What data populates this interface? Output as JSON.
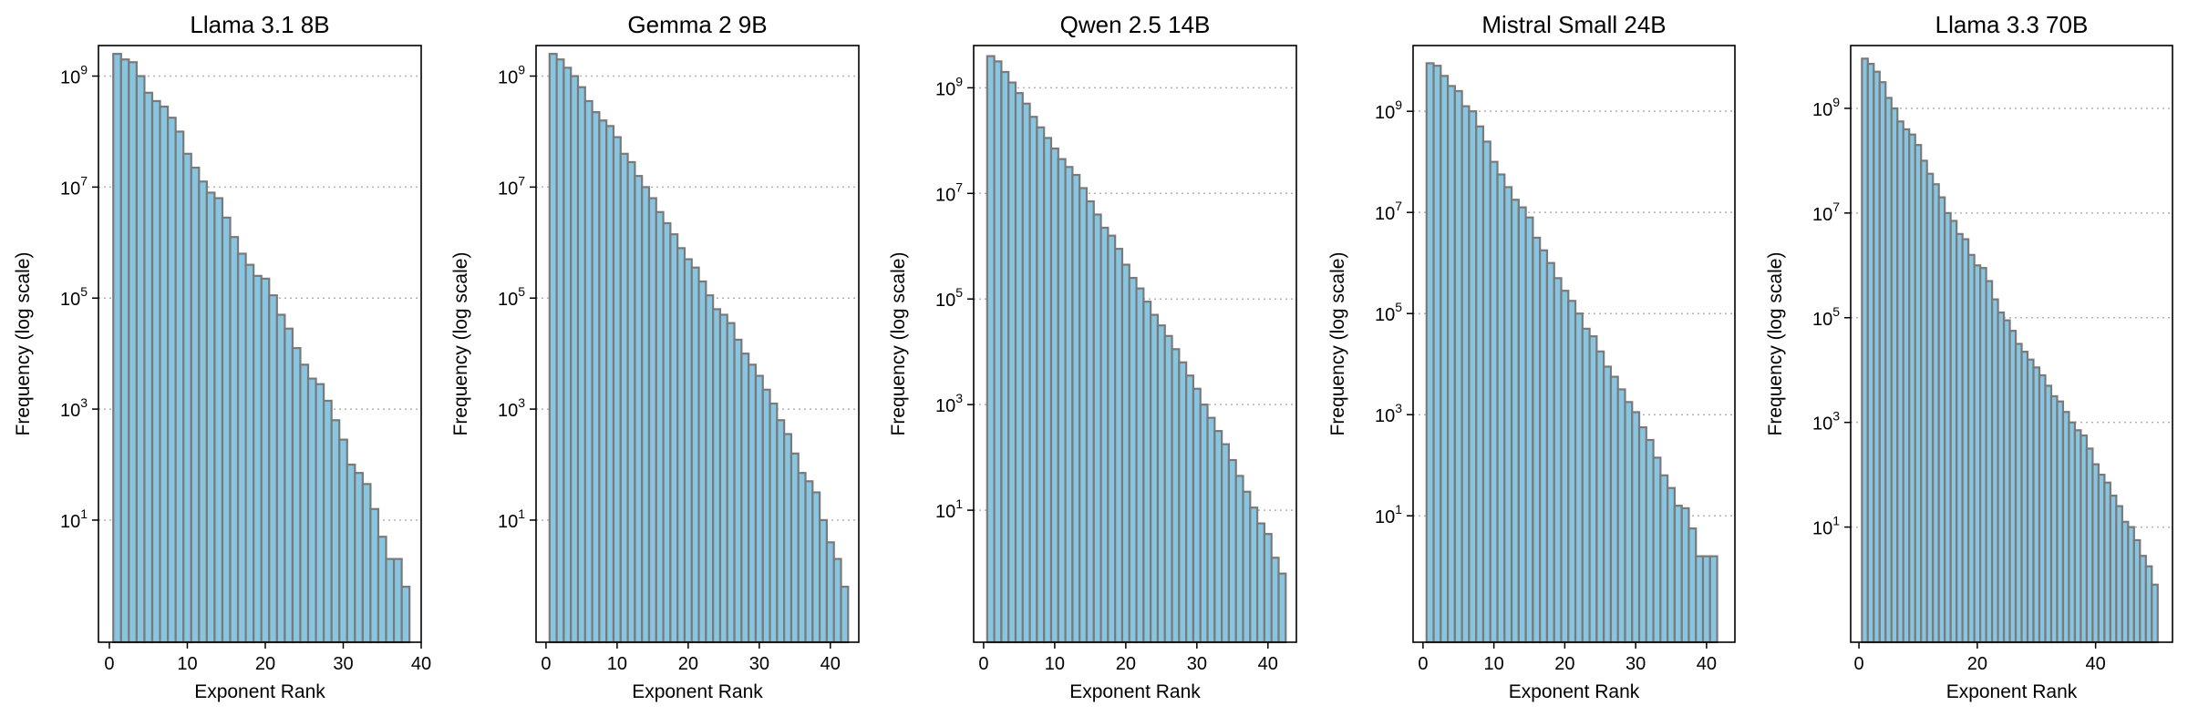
{
  "chart_data": [
    {
      "type": "bar",
      "title": "Llama 3.1 8B",
      "xlabel": "Exponent Rank",
      "ylabel": "Frequency (log scale)",
      "log_y": true,
      "grid": "y-dotted",
      "bar_color": "#87c5e0",
      "edge_color": "#7a7a7a",
      "xlim": [
        -1.4,
        40
      ],
      "xticks": [
        0,
        10,
        20,
        30,
        40
      ],
      "ylim_log10": [
        -1.2,
        9.55
      ],
      "yticks": [
        {
          "base": "10",
          "exp": "1",
          "log": 1
        },
        {
          "base": "10",
          "exp": "3",
          "log": 3
        },
        {
          "base": "10",
          "exp": "5",
          "log": 5
        },
        {
          "base": "10",
          "exp": "7",
          "log": 7
        },
        {
          "base": "10",
          "exp": "9",
          "log": 9
        }
      ],
      "x": [
        1,
        2,
        3,
        4,
        5,
        6,
        7,
        8,
        9,
        10,
        11,
        12,
        13,
        14,
        15,
        16,
        17,
        18,
        19,
        20,
        21,
        22,
        23,
        24,
        25,
        26,
        27,
        28,
        29,
        30,
        31,
        32,
        33,
        34,
        35,
        36,
        37,
        38
      ],
      "log10_values": [
        9.4,
        9.3,
        9.25,
        9.0,
        8.7,
        8.55,
        8.45,
        8.25,
        8.0,
        7.6,
        7.35,
        7.1,
        6.9,
        6.8,
        6.45,
        6.1,
        5.8,
        5.6,
        5.4,
        5.35,
        5.05,
        4.7,
        4.45,
        4.1,
        3.8,
        3.55,
        3.45,
        3.15,
        2.8,
        2.45,
        2.0,
        1.85,
        1.65,
        1.2,
        0.7,
        0.3,
        0.3,
        -0.2
      ]
    },
    {
      "type": "bar",
      "title": "Gemma 2 9B",
      "xlabel": "Exponent Rank",
      "ylabel": "Frequency (log scale)",
      "log_y": true,
      "grid": "y-dotted",
      "bar_color": "#87c5e0",
      "edge_color": "#7a7a7a",
      "xlim": [
        -1.4,
        44
      ],
      "xticks": [
        0,
        10,
        20,
        30,
        40
      ],
      "ylim_log10": [
        -1.2,
        9.55
      ],
      "yticks": [
        {
          "base": "10",
          "exp": "1",
          "log": 1
        },
        {
          "base": "10",
          "exp": "3",
          "log": 3
        },
        {
          "base": "10",
          "exp": "5",
          "log": 5
        },
        {
          "base": "10",
          "exp": "7",
          "log": 7
        },
        {
          "base": "10",
          "exp": "9",
          "log": 9
        }
      ],
      "x": [
        1,
        2,
        3,
        4,
        5,
        6,
        7,
        8,
        9,
        10,
        11,
        12,
        13,
        14,
        15,
        16,
        17,
        18,
        19,
        20,
        21,
        22,
        23,
        24,
        25,
        26,
        27,
        28,
        29,
        30,
        31,
        32,
        33,
        34,
        35,
        36,
        37,
        38,
        39,
        40,
        41,
        42
      ],
      "log10_values": [
        9.4,
        9.3,
        9.15,
        9.0,
        8.8,
        8.55,
        8.35,
        8.2,
        8.1,
        7.9,
        7.6,
        7.45,
        7.2,
        7.0,
        6.8,
        6.55,
        6.35,
        6.15,
        5.9,
        5.7,
        5.55,
        5.3,
        5.05,
        4.8,
        4.7,
        4.55,
        4.25,
        4.0,
        3.8,
        3.6,
        3.35,
        3.1,
        2.8,
        2.55,
        2.2,
        1.85,
        1.7,
        1.5,
        1.0,
        0.6,
        0.3,
        -0.2
      ]
    },
    {
      "type": "bar",
      "title": "Qwen 2.5 14B",
      "xlabel": "Exponent Rank",
      "ylabel": "Frequency (log scale)",
      "log_y": true,
      "grid": "y-dotted",
      "bar_color": "#87c5e0",
      "edge_color": "#7a7a7a",
      "xlim": [
        -1.4,
        44
      ],
      "xticks": [
        0,
        10,
        20,
        30,
        40
      ],
      "ylim_log10": [
        -1.5,
        9.8
      ],
      "yticks": [
        {
          "base": "10",
          "exp": "1",
          "log": 1
        },
        {
          "base": "10",
          "exp": "3",
          "log": 3
        },
        {
          "base": "10",
          "exp": "5",
          "log": 5
        },
        {
          "base": "10",
          "exp": "7",
          "log": 7
        },
        {
          "base": "10",
          "exp": "9",
          "log": 9
        }
      ],
      "x": [
        1,
        2,
        3,
        4,
        5,
        6,
        7,
        8,
        9,
        10,
        11,
        12,
        13,
        14,
        15,
        16,
        17,
        18,
        19,
        20,
        21,
        22,
        23,
        24,
        25,
        26,
        27,
        28,
        29,
        30,
        31,
        32,
        33,
        34,
        35,
        36,
        37,
        38,
        39,
        40,
        41,
        42
      ],
      "log10_values": [
        9.6,
        9.5,
        9.3,
        9.1,
        8.9,
        8.7,
        8.45,
        8.25,
        8.05,
        7.85,
        7.65,
        7.5,
        7.35,
        7.1,
        6.85,
        6.6,
        6.35,
        6.2,
        5.95,
        5.65,
        5.4,
        5.2,
        4.95,
        4.7,
        4.5,
        4.3,
        4.05,
        3.8,
        3.55,
        3.3,
        3.0,
        2.75,
        2.5,
        2.25,
        1.95,
        1.65,
        1.35,
        1.05,
        0.75,
        0.55,
        0.1,
        -0.2
      ]
    },
    {
      "type": "bar",
      "title": "Mistral Small 24B",
      "xlabel": "Exponent Rank",
      "ylabel": "Frequency (log scale)",
      "log_y": true,
      "grid": "y-dotted",
      "bar_color": "#87c5e0",
      "edge_color": "#7a7a7a",
      "xlim": [
        -1.4,
        44
      ],
      "xticks": [
        0,
        10,
        20,
        30,
        40
      ],
      "ylim_log10": [
        -1.5,
        10.3
      ],
      "yticks": [
        {
          "base": "10",
          "exp": "1",
          "log": 1
        },
        {
          "base": "10",
          "exp": "3",
          "log": 3
        },
        {
          "base": "10",
          "exp": "5",
          "log": 5
        },
        {
          "base": "10",
          "exp": "7",
          "log": 7
        },
        {
          "base": "10",
          "exp": "9",
          "log": 9
        }
      ],
      "x": [
        1,
        2,
        3,
        4,
        5,
        6,
        7,
        8,
        9,
        10,
        11,
        12,
        13,
        14,
        15,
        16,
        17,
        18,
        19,
        20,
        21,
        22,
        23,
        24,
        25,
        26,
        27,
        28,
        29,
        30,
        31,
        32,
        33,
        34,
        35,
        36,
        37,
        38,
        39,
        40,
        41
      ],
      "log10_values": [
        9.95,
        9.9,
        9.7,
        9.5,
        9.4,
        9.1,
        9.0,
        8.7,
        8.4,
        8.0,
        7.75,
        7.5,
        7.25,
        7.1,
        6.9,
        6.5,
        6.25,
        6.0,
        5.7,
        5.45,
        5.25,
        5.0,
        4.7,
        4.55,
        4.25,
        3.95,
        3.75,
        3.5,
        3.25,
        3.05,
        2.75,
        2.5,
        2.15,
        1.8,
        1.55,
        1.2,
        1.15,
        0.75,
        0.2,
        0.2,
        0.2
      ]
    },
    {
      "type": "bar",
      "title": "Llama 3.3 70B",
      "xlabel": "Exponent Rank",
      "ylabel": "Frequency (log scale)",
      "log_y": true,
      "grid": "y-dotted",
      "bar_color": "#87c5e0",
      "edge_color": "#7a7a7a",
      "xlim": [
        -1.4,
        53
      ],
      "xticks": [
        0,
        20,
        40
      ],
      "ylim_log10": [
        -1.2,
        10.2
      ],
      "yticks": [
        {
          "base": "10",
          "exp": "1",
          "log": 1
        },
        {
          "base": "10",
          "exp": "3",
          "log": 3
        },
        {
          "base": "10",
          "exp": "5",
          "log": 5
        },
        {
          "base": "10",
          "exp": "7",
          "log": 7
        },
        {
          "base": "10",
          "exp": "9",
          "log": 9
        }
      ],
      "x": [
        1,
        2,
        3,
        4,
        5,
        6,
        7,
        8,
        9,
        10,
        11,
        12,
        13,
        14,
        15,
        16,
        17,
        18,
        19,
        20,
        21,
        22,
        23,
        24,
        25,
        26,
        27,
        28,
        29,
        30,
        31,
        32,
        33,
        34,
        35,
        36,
        37,
        38,
        39,
        40,
        41,
        42,
        43,
        44,
        45,
        46,
        47,
        48,
        49,
        50
      ],
      "log10_values": [
        9.95,
        9.85,
        9.7,
        9.5,
        9.2,
        9.0,
        8.75,
        8.6,
        8.5,
        8.3,
        8.0,
        7.75,
        7.55,
        7.3,
        7.0,
        6.85,
        6.6,
        6.5,
        6.2,
        6.0,
        5.95,
        5.7,
        5.35,
        5.1,
        4.95,
        4.75,
        4.5,
        4.35,
        4.2,
        4.05,
        3.9,
        3.7,
        3.5,
        3.4,
        3.2,
        3.0,
        2.85,
        2.75,
        2.5,
        2.2,
        2.0,
        1.85,
        1.6,
        1.4,
        1.1,
        1.0,
        0.75,
        0.45,
        0.25,
        -0.1
      ]
    }
  ]
}
